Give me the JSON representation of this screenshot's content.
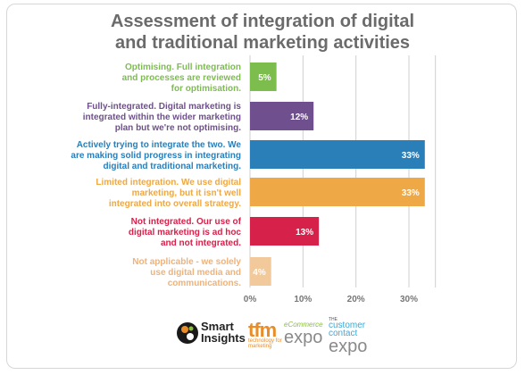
{
  "title_line1": "Assessment of integration of digital",
  "title_line2": "and traditional marketing activities",
  "chart_data": {
    "type": "bar",
    "orientation": "horizontal",
    "title": "Assessment of integration of digital and traditional marketing activities",
    "categories": [
      [
        "Optimising. Full integration",
        "and processes are reviewed",
        "for optimisation."
      ],
      [
        "Fully-integrated. Digital marketing is",
        "integrated within the wider marketing",
        "plan but we're not optimising."
      ],
      [
        "Actively trying to integrate the two. We",
        "are making solid progress in integrating",
        "digital and traditional marketing."
      ],
      [
        "Limited integration. We use digital",
        "marketing, but it isn't well",
        "integrated into overall strategy."
      ],
      [
        "Not integrated. Our use of",
        "digital marketing is ad hoc",
        "and not integrated."
      ],
      [
        "Not applicable - we solely",
        "use digital media and",
        "communications."
      ]
    ],
    "values": [
      5,
      12,
      33,
      33,
      13,
      4
    ],
    "value_labels": [
      "5%",
      "12%",
      "33%",
      "33%",
      "13%",
      "4%"
    ],
    "colors": [
      "#7cbd4e",
      "#6f4f8e",
      "#2a7fb8",
      "#eea845",
      "#d6214a",
      "#f2c99a"
    ],
    "xlim": [
      0,
      35
    ],
    "x_ticks": [
      0,
      10,
      20,
      30
    ],
    "x_tick_labels": [
      "0%",
      "10%",
      "20%",
      "30%"
    ],
    "grid": true,
    "xlabel": "",
    "ylabel": ""
  },
  "logos": {
    "smart_insights": [
      "Smart",
      "Insights"
    ],
    "tfm": "tfm",
    "tfm_sub": "technology for marketing",
    "ecommerce_top": "eCommerce",
    "ecommerce_expo": "expo",
    "cce_pre": "THE",
    "cce_top": [
      "customer",
      "contact"
    ],
    "cce_expo": "expo"
  }
}
